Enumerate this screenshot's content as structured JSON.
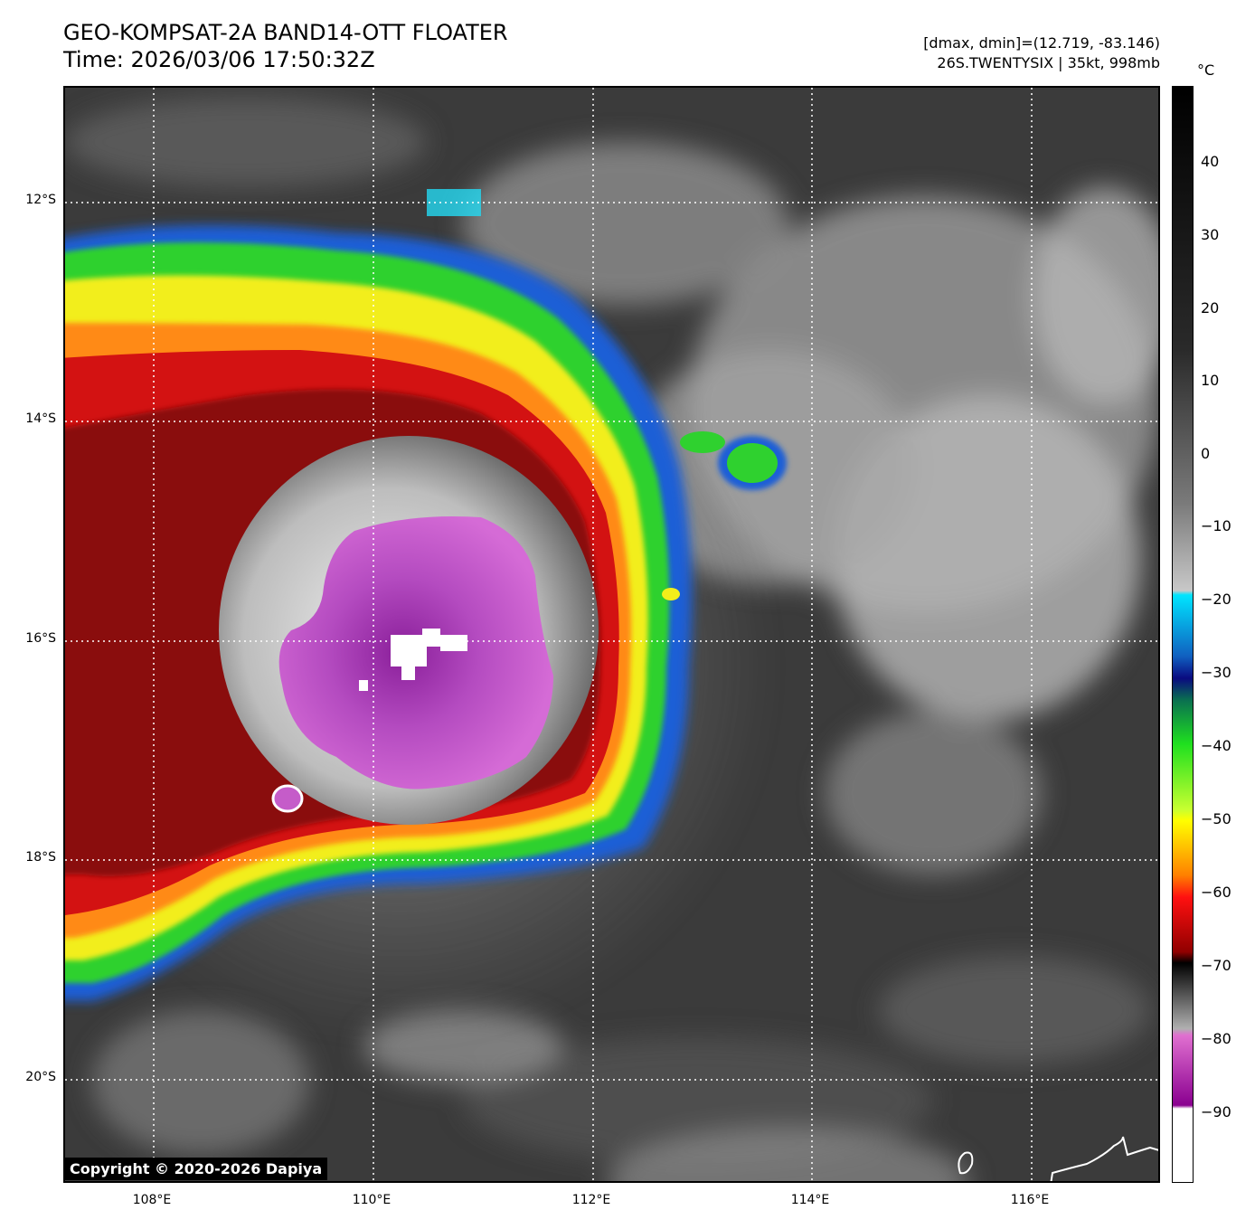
{
  "header": {
    "title_line1": "GEO-KOMPSAT-2A BAND14-OTT FLOATER",
    "title_line2": "Time: 2026/03/06 17:50:32Z",
    "info_line1": "[dmax, dmin]=(12.719, -83.146)",
    "info_line2": "26S.TWENTYSIX | 35kt, 998mb"
  },
  "map": {
    "lat_labels": [
      "12°S",
      "14°S",
      "16°S",
      "18°S",
      "20°S"
    ],
    "lon_labels": [
      "108°E",
      "110°E",
      "112°E",
      "114°E",
      "116°E"
    ],
    "copyright": "Copyright © 2020-2026 Dapiya"
  },
  "colorbar": {
    "unit": "°C",
    "tick_labels": [
      "40",
      "30",
      "20",
      "10",
      "0",
      "−10",
      "−20",
      "−30",
      "−40",
      "−50",
      "−60",
      "−70",
      "−80",
      "−90"
    ]
  }
}
